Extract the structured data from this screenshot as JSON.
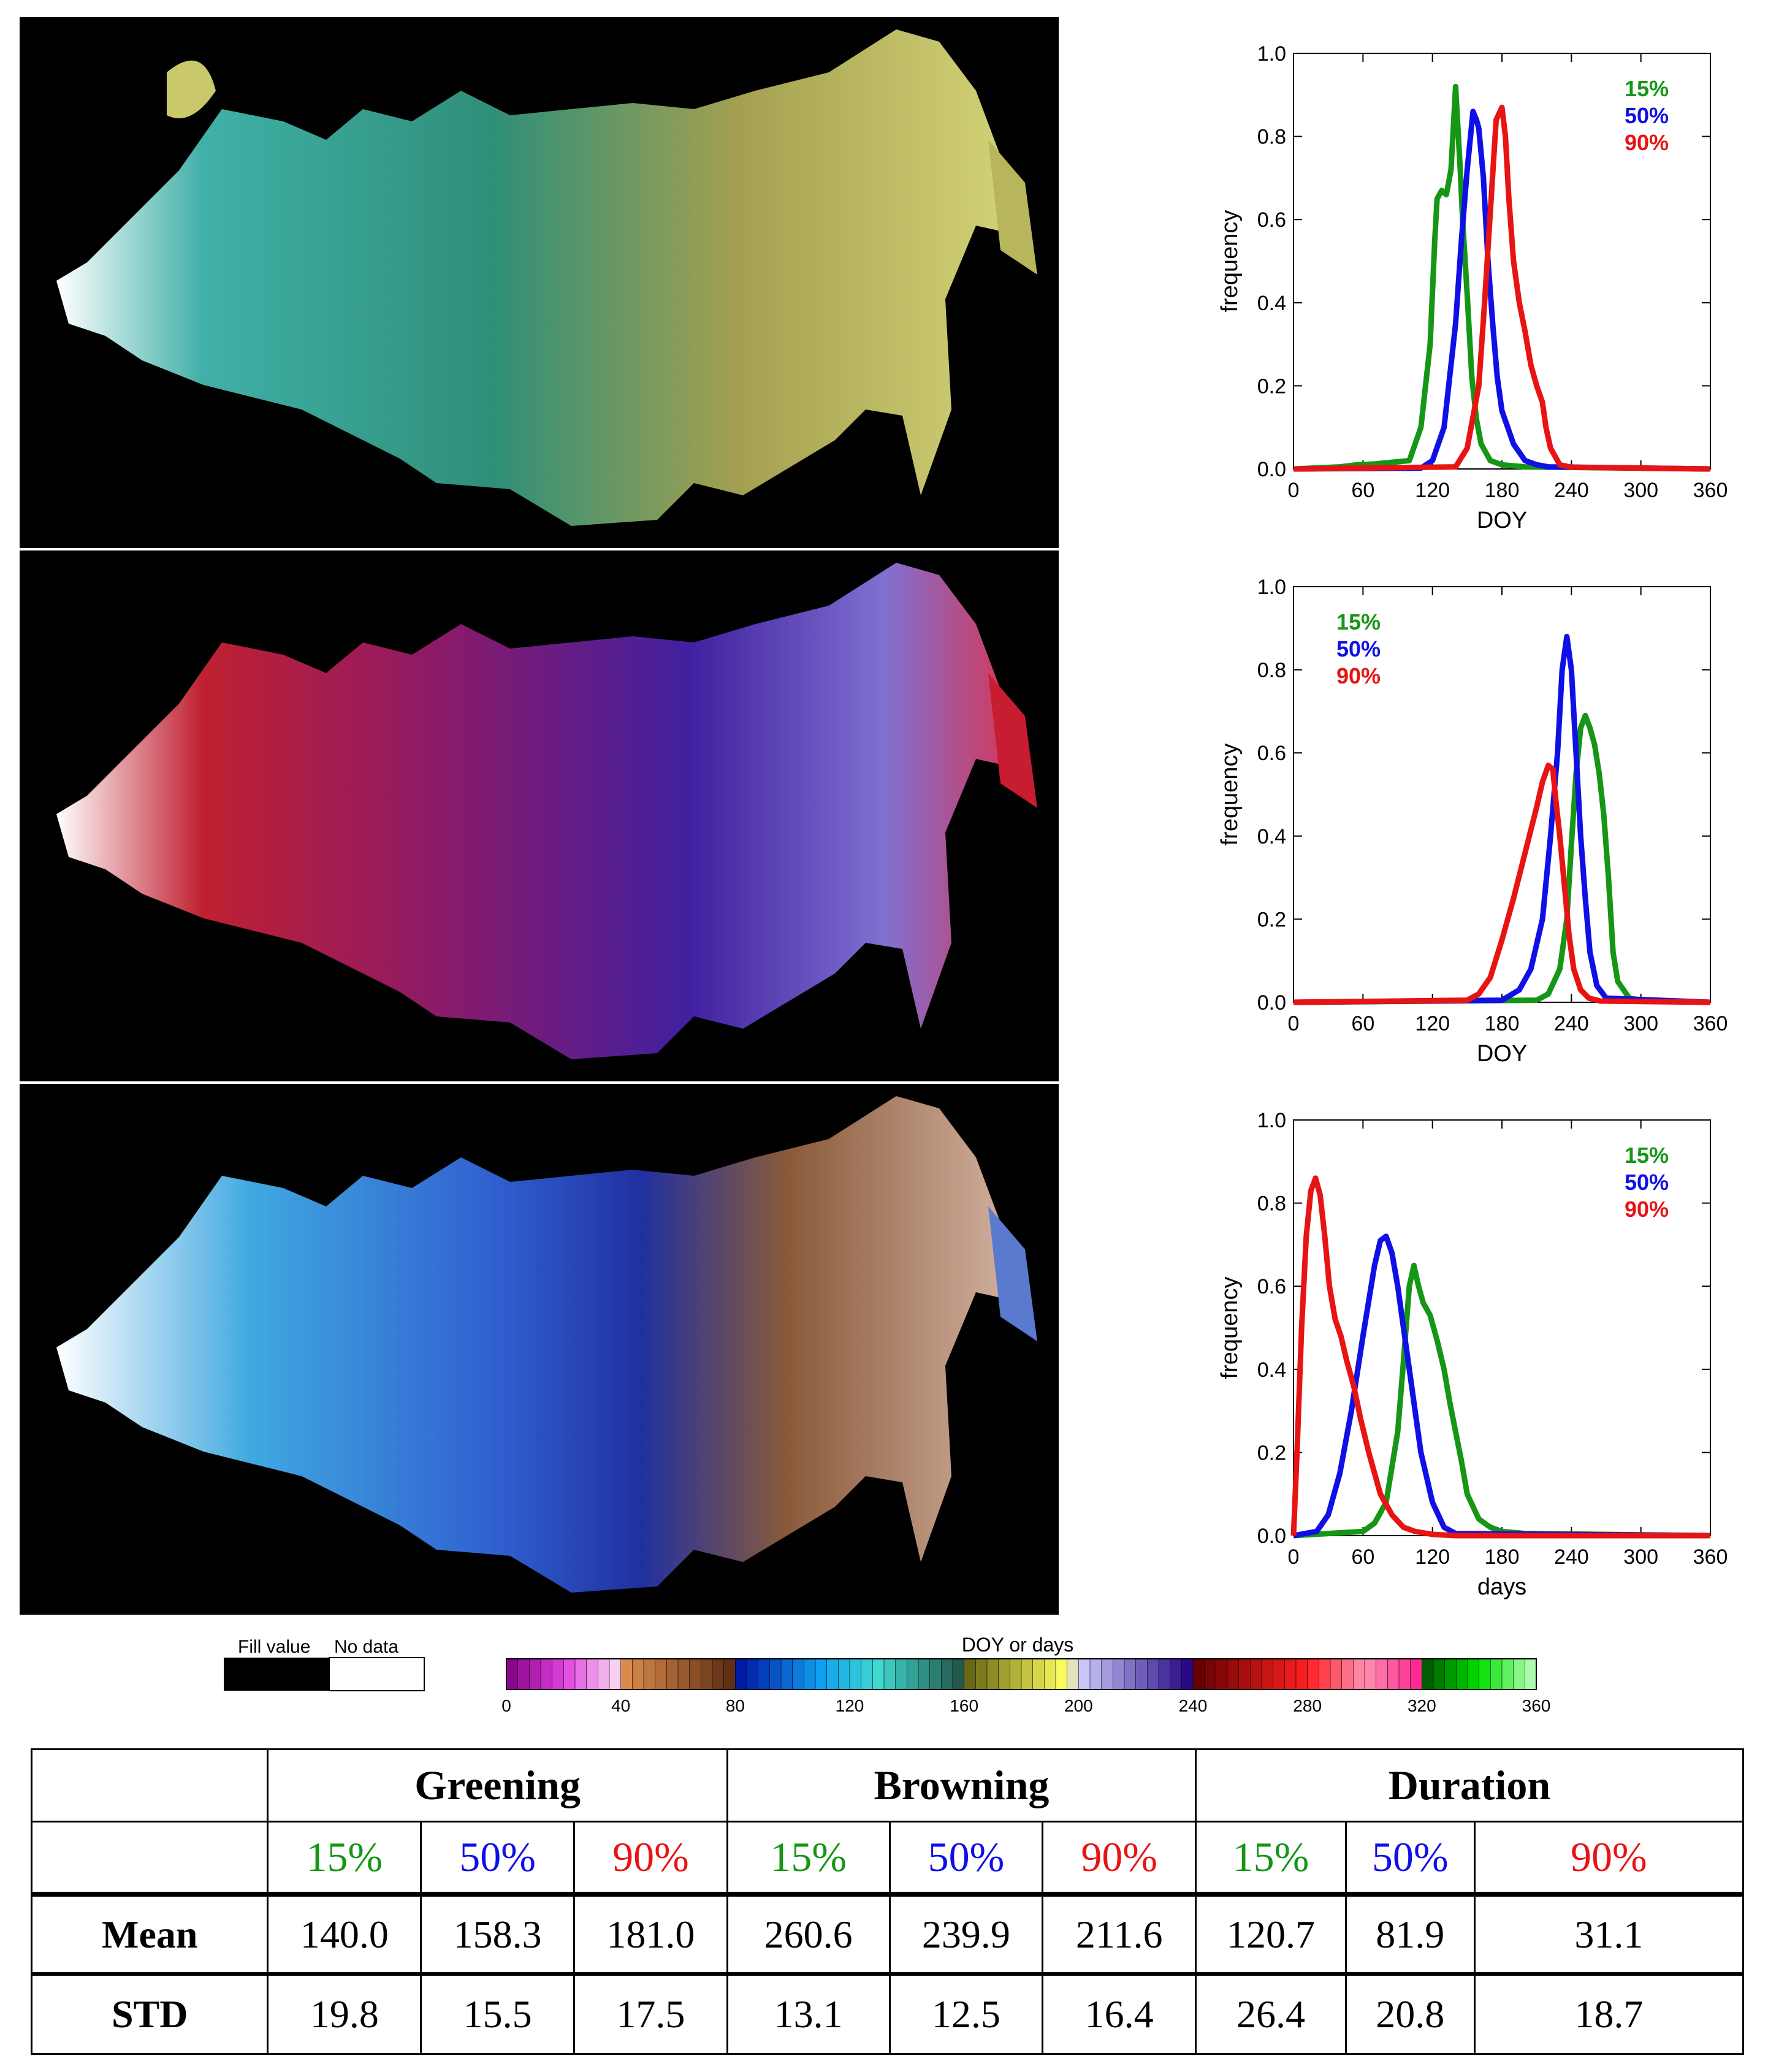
{
  "colors": {
    "green": "#169616",
    "blue": "#1010e6",
    "red": "#e81414"
  },
  "charts": [
    {
      "id": "greening",
      "xlabel": "DOY",
      "ylabel": "frequency",
      "legend_position": "top-right",
      "legend": [
        "15%",
        "50%",
        "90%"
      ],
      "xticks": [
        "0",
        "60",
        "120",
        "180",
        "240",
        "300",
        "360"
      ],
      "yticks": [
        "0.0",
        "0.2",
        "0.4",
        "0.6",
        "0.8",
        "1.0"
      ]
    },
    {
      "id": "browning",
      "xlabel": "DOY",
      "ylabel": "frequency",
      "legend_position": "top-left",
      "legend": [
        "15%",
        "50%",
        "90%"
      ],
      "xticks": [
        "0",
        "60",
        "120",
        "180",
        "240",
        "300",
        "360"
      ],
      "yticks": [
        "0.0",
        "0.2",
        "0.4",
        "0.6",
        "0.8",
        "1.0"
      ]
    },
    {
      "id": "duration",
      "xlabel": "days",
      "ylabel": "frequency",
      "legend_position": "top-right",
      "legend": [
        "15%",
        "50%",
        "90%"
      ],
      "xticks": [
        "0",
        "60",
        "120",
        "180",
        "240",
        "300",
        "360"
      ],
      "yticks": [
        "0.0",
        "0.2",
        "0.4",
        "0.6",
        "0.8",
        "1.0"
      ]
    }
  ],
  "chart_data": [
    {
      "type": "line",
      "title": "",
      "xlabel": "DOY",
      "ylabel": "frequency",
      "xlim": [
        0,
        360
      ],
      "ylim": [
        0,
        1
      ],
      "series": [
        {
          "name": "15%",
          "color": "#169616",
          "x": [
            0,
            40,
            55,
            70,
            100,
            110,
            118,
            122,
            124,
            128,
            132,
            136,
            140,
            144,
            146,
            150,
            154,
            158,
            162,
            166,
            170,
            180,
            200,
            360
          ],
          "y": [
            0,
            0.005,
            0.01,
            0.012,
            0.02,
            0.1,
            0.3,
            0.55,
            0.65,
            0.67,
            0.66,
            0.72,
            0.92,
            0.72,
            0.6,
            0.42,
            0.22,
            0.12,
            0.06,
            0.04,
            0.02,
            0.01,
            0.005,
            0
          ]
        },
        {
          "name": "50%",
          "color": "#1010e6",
          "x": [
            0,
            110,
            120,
            130,
            140,
            145,
            150,
            155,
            158,
            160,
            164,
            168,
            172,
            176,
            180,
            190,
            200,
            210,
            220,
            360
          ],
          "y": [
            0,
            0.002,
            0.02,
            0.1,
            0.35,
            0.55,
            0.72,
            0.86,
            0.84,
            0.82,
            0.7,
            0.5,
            0.35,
            0.22,
            0.14,
            0.06,
            0.02,
            0.01,
            0.005,
            0
          ]
        },
        {
          "name": "90%",
          "color": "#e81414",
          "x": [
            0,
            140,
            150,
            160,
            165,
            170,
            175,
            180,
            183,
            186,
            190,
            195,
            200,
            205,
            210,
            215,
            218,
            222,
            230,
            240,
            360
          ],
          "y": [
            0,
            0.005,
            0.05,
            0.2,
            0.4,
            0.62,
            0.84,
            0.87,
            0.8,
            0.65,
            0.5,
            0.4,
            0.33,
            0.25,
            0.2,
            0.16,
            0.1,
            0.05,
            0.01,
            0.004,
            0
          ]
        }
      ]
    },
    {
      "type": "line",
      "title": "",
      "xlabel": "DOY",
      "ylabel": "frequency",
      "xlim": [
        0,
        360
      ],
      "ylim": [
        0,
        1
      ],
      "series": [
        {
          "name": "15%",
          "color": "#169616",
          "x": [
            0,
            210,
            220,
            230,
            236,
            240,
            244,
            248,
            252,
            256,
            260,
            264,
            268,
            272,
            276,
            280,
            290,
            300,
            360
          ],
          "y": [
            0,
            0.005,
            0.02,
            0.08,
            0.2,
            0.38,
            0.55,
            0.66,
            0.69,
            0.66,
            0.62,
            0.55,
            0.45,
            0.3,
            0.12,
            0.05,
            0.01,
            0.005,
            0
          ]
        },
        {
          "name": "50%",
          "color": "#1010e6",
          "x": [
            0,
            180,
            195,
            205,
            215,
            222,
            228,
            232,
            236,
            240,
            244,
            248,
            252,
            256,
            262,
            270,
            360
          ],
          "y": [
            0,
            0.005,
            0.03,
            0.08,
            0.2,
            0.4,
            0.6,
            0.8,
            0.88,
            0.8,
            0.6,
            0.4,
            0.25,
            0.12,
            0.04,
            0.01,
            0
          ]
        },
        {
          "name": "90%",
          "color": "#e81414",
          "x": [
            0,
            150,
            160,
            170,
            180,
            190,
            200,
            210,
            215,
            220,
            224,
            226,
            230,
            234,
            238,
            242,
            248,
            255,
            265,
            360
          ],
          "y": [
            0,
            0.005,
            0.02,
            0.06,
            0.15,
            0.25,
            0.36,
            0.47,
            0.53,
            0.57,
            0.56,
            0.5,
            0.4,
            0.28,
            0.16,
            0.08,
            0.03,
            0.01,
            0.003,
            0
          ]
        }
      ]
    },
    {
      "type": "line",
      "title": "",
      "xlabel": "days",
      "ylabel": "frequency",
      "xlim": [
        0,
        360
      ],
      "ylim": [
        0,
        1
      ],
      "series": [
        {
          "name": "15%",
          "color": "#169616",
          "x": [
            0,
            60,
            70,
            80,
            90,
            95,
            100,
            104,
            108,
            112,
            118,
            124,
            130,
            135,
            140,
            145,
            150,
            160,
            170,
            180,
            200,
            360
          ],
          "y": [
            0,
            0.01,
            0.03,
            0.08,
            0.25,
            0.42,
            0.6,
            0.65,
            0.6,
            0.56,
            0.53,
            0.47,
            0.4,
            0.32,
            0.25,
            0.18,
            0.1,
            0.04,
            0.02,
            0.01,
            0.005,
            0
          ]
        },
        {
          "name": "50%",
          "color": "#1010e6",
          "x": [
            0,
            20,
            30,
            40,
            50,
            60,
            70,
            75,
            80,
            85,
            90,
            95,
            100,
            110,
            120,
            130,
            140,
            360
          ],
          "y": [
            0,
            0.01,
            0.05,
            0.15,
            0.3,
            0.48,
            0.65,
            0.71,
            0.72,
            0.68,
            0.6,
            0.5,
            0.4,
            0.2,
            0.08,
            0.02,
            0.005,
            0
          ]
        },
        {
          "name": "90%",
          "color": "#e81414",
          "x": [
            0,
            3,
            7,
            11,
            15,
            19,
            23,
            27,
            31,
            36,
            41,
            46,
            52,
            58,
            65,
            75,
            85,
            95,
            105,
            120,
            140,
            360
          ],
          "y": [
            0,
            0.2,
            0.5,
            0.72,
            0.83,
            0.86,
            0.82,
            0.72,
            0.6,
            0.52,
            0.48,
            0.42,
            0.36,
            0.28,
            0.2,
            0.1,
            0.05,
            0.02,
            0.01,
            0.003,
            0,
            0
          ]
        }
      ]
    }
  ],
  "colorbar": {
    "title": "DOY or days",
    "ticks": [
      "0",
      "40",
      "80",
      "120",
      "160",
      "200",
      "240",
      "280",
      "320",
      "360"
    ]
  },
  "fill_legend": {
    "fill_label": "Fill value",
    "nodata_label": "No data"
  },
  "table": {
    "groups": [
      "Greening",
      "Browning",
      "Duration"
    ],
    "pct_labels": [
      "15%",
      "50%",
      "90%",
      "15%",
      "50%",
      "90%",
      "15%",
      "50%",
      "90%"
    ],
    "rows": [
      {
        "label": "Mean",
        "values": [
          "140.0",
          "158.3",
          "181.0",
          "260.6",
          "239.9",
          "211.6",
          "120.7",
          "81.9",
          "31.1"
        ]
      },
      {
        "label": "STD",
        "values": [
          "19.8",
          "15.5",
          "17.5",
          "13.1",
          "12.5",
          "16.4",
          "26.4",
          "20.8",
          "18.7"
        ]
      }
    ]
  }
}
